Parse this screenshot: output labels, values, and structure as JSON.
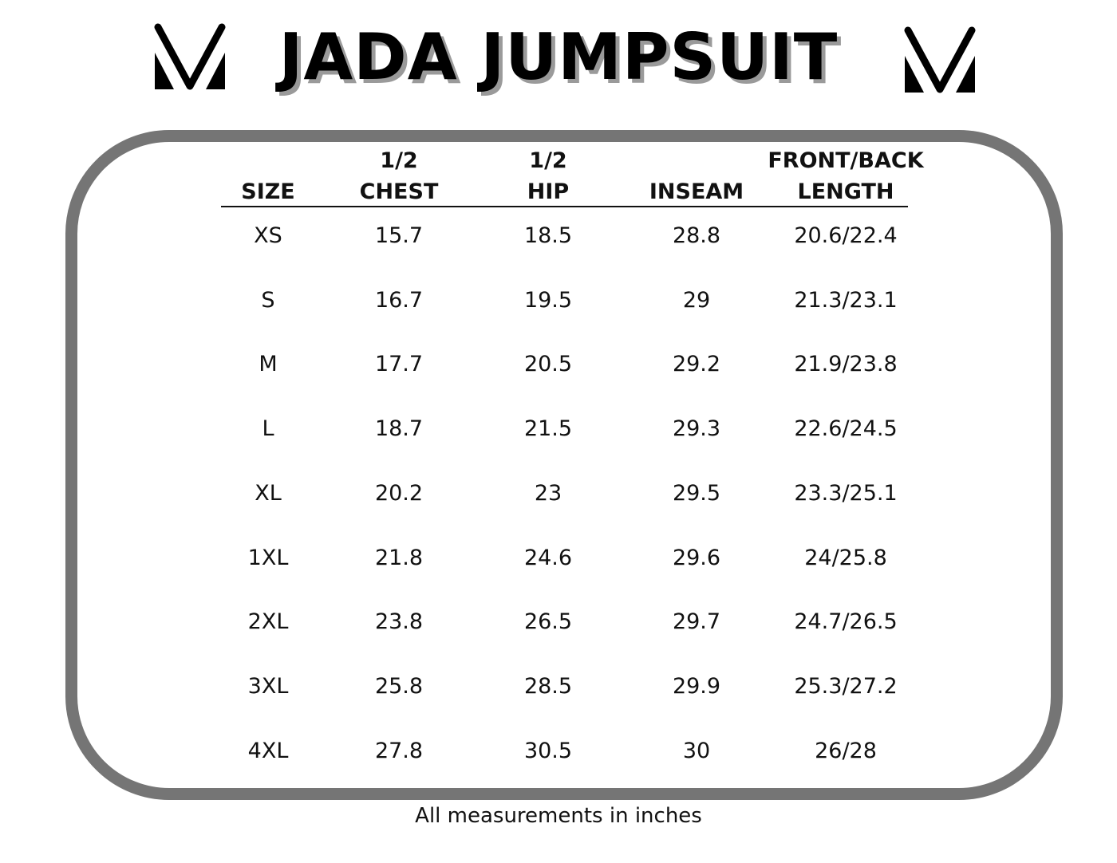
{
  "title": "JADA JUMPSUIT",
  "logo_icon": "v-logo-icon",
  "border_color": "#757575",
  "table": {
    "headers": [
      {
        "line1": "",
        "line2": "SIZE"
      },
      {
        "line1": "1/2",
        "line2": "CHEST"
      },
      {
        "line1": "1/2",
        "line2": "HIP"
      },
      {
        "line1": "",
        "line2": "INSEAM"
      },
      {
        "line1": "FRONT/BACK",
        "line2": "LENGTH"
      }
    ],
    "rows": [
      [
        "XS",
        "15.7",
        "18.5",
        "28.8",
        "20.6/22.4"
      ],
      [
        "S",
        "16.7",
        "19.5",
        "29",
        "21.3/23.1"
      ],
      [
        "M",
        "17.7",
        "20.5",
        "29.2",
        "21.9/23.8"
      ],
      [
        "L",
        "18.7",
        "21.5",
        "29.3",
        "22.6/24.5"
      ],
      [
        "XL",
        "20.2",
        "23",
        "29.5",
        "23.3/25.1"
      ],
      [
        "1XL",
        "21.8",
        "24.6",
        "29.6",
        "24/25.8"
      ],
      [
        "2XL",
        "23.8",
        "26.5",
        "29.7",
        "24.7/26.5"
      ],
      [
        "3XL",
        "25.8",
        "28.5",
        "29.9",
        "25.3/27.2"
      ],
      [
        "4XL",
        "27.8",
        "30.5",
        "30",
        "26/28"
      ]
    ]
  },
  "footnote": "All measurements in inches"
}
